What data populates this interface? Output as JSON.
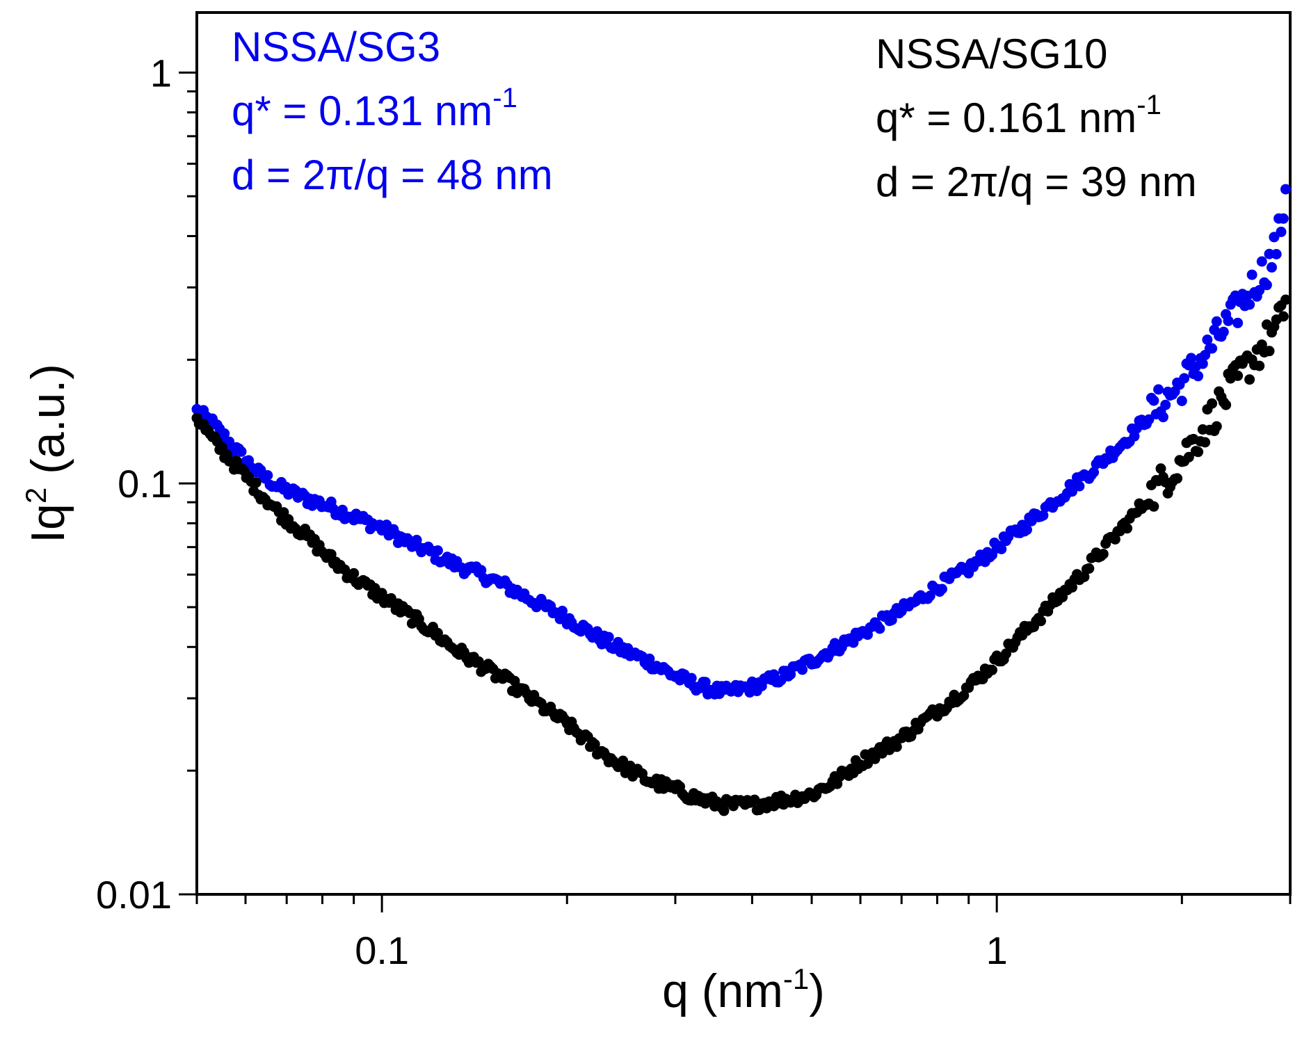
{
  "chart_data": {
    "type": "scatter",
    "title": "",
    "xlabel": {
      "base": "q (nm",
      "sup": "-1",
      "tail": ")"
    },
    "ylabel": {
      "base": "Iq",
      "sup": "2",
      "tail": " (a.u.)"
    },
    "x_scale": "log",
    "y_scale": "log",
    "xlim": [
      0.05,
      3.0
    ],
    "ylim": [
      0.01,
      1.4
    ],
    "x_ticks": [
      {
        "value": 0.1,
        "label": "0.1"
      },
      {
        "value": 1,
        "label": "1"
      }
    ],
    "y_ticks": [
      {
        "value": 0.01,
        "label": "0.01"
      },
      {
        "value": 0.1,
        "label": "0.1"
      },
      {
        "value": 1,
        "label": "1"
      }
    ],
    "grid": false,
    "series": [
      {
        "name": "NSSA/SG3",
        "color": "#0000ee",
        "points": [
          [
            0.05,
            0.15
          ],
          [
            0.053,
            0.14
          ],
          [
            0.058,
            0.12
          ],
          [
            0.063,
            0.106
          ],
          [
            0.068,
            0.098
          ],
          [
            0.075,
            0.092
          ],
          [
            0.082,
            0.088
          ],
          [
            0.09,
            0.083
          ],
          [
            0.1,
            0.078
          ],
          [
            0.11,
            0.072
          ],
          [
            0.12,
            0.068
          ],
          [
            0.13,
            0.064
          ],
          [
            0.145,
            0.06
          ],
          [
            0.16,
            0.056
          ],
          [
            0.18,
            0.051
          ],
          [
            0.2,
            0.047
          ],
          [
            0.22,
            0.043
          ],
          [
            0.24,
            0.04
          ],
          [
            0.27,
            0.037
          ],
          [
            0.3,
            0.034
          ],
          [
            0.33,
            0.032
          ],
          [
            0.36,
            0.031
          ],
          [
            0.4,
            0.032
          ],
          [
            0.45,
            0.034
          ],
          [
            0.5,
            0.037
          ],
          [
            0.55,
            0.04
          ],
          [
            0.6,
            0.043
          ],
          [
            0.7,
            0.049
          ],
          [
            0.8,
            0.056
          ],
          [
            0.9,
            0.062
          ],
          [
            1.0,
            0.07
          ],
          [
            1.1,
            0.078
          ],
          [
            1.2,
            0.087
          ],
          [
            1.4,
            0.105
          ],
          [
            1.6,
            0.125
          ],
          [
            1.8,
            0.15
          ],
          [
            2.0,
            0.175
          ],
          [
            2.2,
            0.21
          ],
          [
            2.4,
            0.25
          ],
          [
            2.6,
            0.3
          ],
          [
            2.8,
            0.35
          ],
          [
            2.9,
            0.42
          ],
          [
            2.95,
            0.52
          ]
        ]
      },
      {
        "name": "NSSA/SG10",
        "color": "#000000",
        "points": [
          [
            0.05,
            0.145
          ],
          [
            0.053,
            0.128
          ],
          [
            0.058,
            0.11
          ],
          [
            0.063,
            0.096
          ],
          [
            0.068,
            0.085
          ],
          [
            0.075,
            0.075
          ],
          [
            0.082,
            0.066
          ],
          [
            0.09,
            0.059
          ],
          [
            0.1,
            0.053
          ],
          [
            0.11,
            0.048
          ],
          [
            0.12,
            0.044
          ],
          [
            0.13,
            0.04
          ],
          [
            0.145,
            0.036
          ],
          [
            0.16,
            0.033
          ],
          [
            0.18,
            0.029
          ],
          [
            0.2,
            0.026
          ],
          [
            0.22,
            0.023
          ],
          [
            0.24,
            0.021
          ],
          [
            0.27,
            0.019
          ],
          [
            0.3,
            0.018
          ],
          [
            0.33,
            0.017
          ],
          [
            0.36,
            0.0165
          ],
          [
            0.4,
            0.0165
          ],
          [
            0.45,
            0.017
          ],
          [
            0.5,
            0.0175
          ],
          [
            0.55,
            0.019
          ],
          [
            0.6,
            0.021
          ],
          [
            0.7,
            0.024
          ],
          [
            0.8,
            0.028
          ],
          [
            0.9,
            0.032
          ],
          [
            1.0,
            0.037
          ],
          [
            1.1,
            0.043
          ],
          [
            1.2,
            0.049
          ],
          [
            1.4,
            0.062
          ],
          [
            1.6,
            0.078
          ],
          [
            1.8,
            0.095
          ],
          [
            2.0,
            0.115
          ],
          [
            2.2,
            0.14
          ],
          [
            2.4,
            0.17
          ],
          [
            2.6,
            0.2
          ],
          [
            2.8,
            0.23
          ],
          [
            2.9,
            0.25
          ],
          [
            2.95,
            0.28
          ]
        ]
      }
    ],
    "annotations": [
      {
        "name": "sg3",
        "color": "#0000ee",
        "lines": [
          {
            "text": "NSSA/SG3"
          },
          {
            "text": "q* = 0.131 nm",
            "sup": "-1"
          },
          {
            "text": "d = 2π/q = 48 nm"
          }
        ]
      },
      {
        "name": "sg10",
        "color": "#000000",
        "lines": [
          {
            "text": "NSSA/SG10"
          },
          {
            "text": "q* = 0.161 nm",
            "sup": "-1"
          },
          {
            "text": "d = 2π/q = 39 nm"
          }
        ]
      }
    ]
  }
}
